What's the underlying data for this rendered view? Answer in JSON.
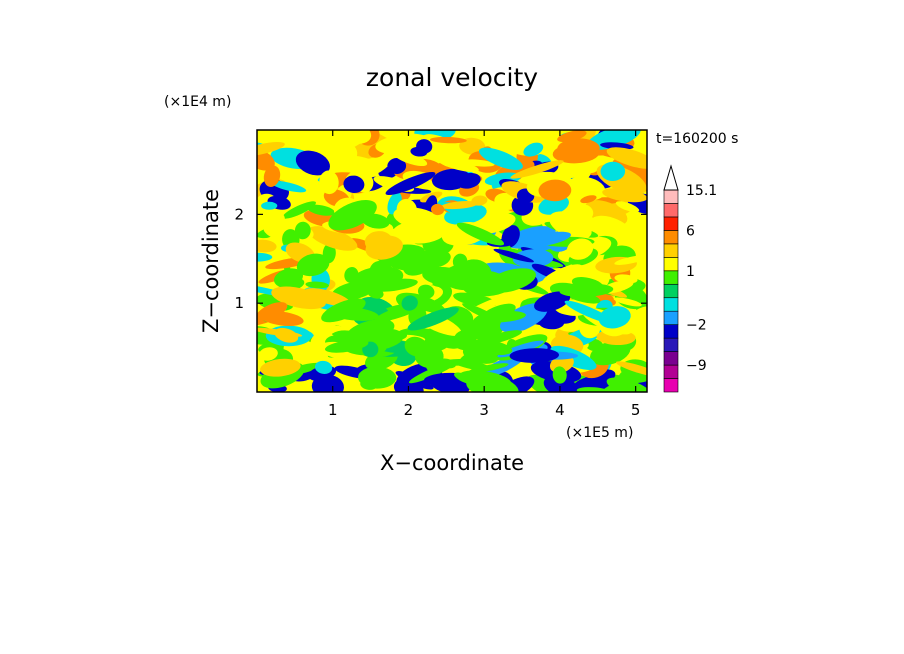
{
  "chart_data": {
    "type": "heatmap",
    "title": "zonal velocity",
    "xlabel": "X−coordinate",
    "ylabel": "Z−coordinate",
    "x_scale_label": "(×1E5 m)",
    "y_scale_label": "(×1E4 m)",
    "time_label": "t=160200 s",
    "xlim": [
      0,
      5.15
    ],
    "ylim": [
      0,
      2.95
    ],
    "x_ticks": [
      {
        "value": 1,
        "label": "1"
      },
      {
        "value": 2,
        "label": "2"
      },
      {
        "value": 3,
        "label": "3"
      },
      {
        "value": 4,
        "label": "4"
      },
      {
        "value": 5,
        "label": "5"
      }
    ],
    "y_ticks": [
      {
        "value": 1,
        "label": "1"
      },
      {
        "value": 2,
        "label": "2"
      }
    ],
    "colorbar": {
      "labels": [
        {
          "value": 15.1,
          "label": "15.1"
        },
        {
          "value": 6,
          "label": "6"
        },
        {
          "value": 1,
          "label": "1"
        },
        {
          "value": -2,
          "label": "−2"
        },
        {
          "value": -9,
          "label": "−9"
        }
      ],
      "levels": [
        {
          "min": -16,
          "max": -12,
          "color": "#e800b0"
        },
        {
          "min": -12,
          "max": -9,
          "color": "#b20094"
        },
        {
          "min": -9,
          "max": -6,
          "color": "#7a0090"
        },
        {
          "min": -6,
          "max": -4,
          "color": "#2a18b8"
        },
        {
          "min": -4,
          "max": -2,
          "color": "#0000c8"
        },
        {
          "min": -2,
          "max": -1,
          "color": "#1aa0ff"
        },
        {
          "min": -1,
          "max": 0,
          "color": "#00e0e0"
        },
        {
          "min": 0,
          "max": 0.5,
          "color": "#00d060"
        },
        {
          "min": 0.5,
          "max": 1,
          "color": "#40f000"
        },
        {
          "min": 1,
          "max": 2,
          "color": "#ffff00"
        },
        {
          "min": 2,
          "max": 3,
          "color": "#ffd000"
        },
        {
          "min": 3,
          "max": 6,
          "color": "#ff8c00"
        },
        {
          "min": 6,
          "max": 9,
          "color": "#ff2000"
        },
        {
          "min": 9,
          "max": 12,
          "color": "#ff6a6a"
        },
        {
          "min": 12,
          "max": 15.1,
          "color": "#ffbcbc"
        },
        {
          "min": 15.1,
          "max": 20,
          "color": "#ffffff"
        }
      ]
    },
    "grid": false
  }
}
